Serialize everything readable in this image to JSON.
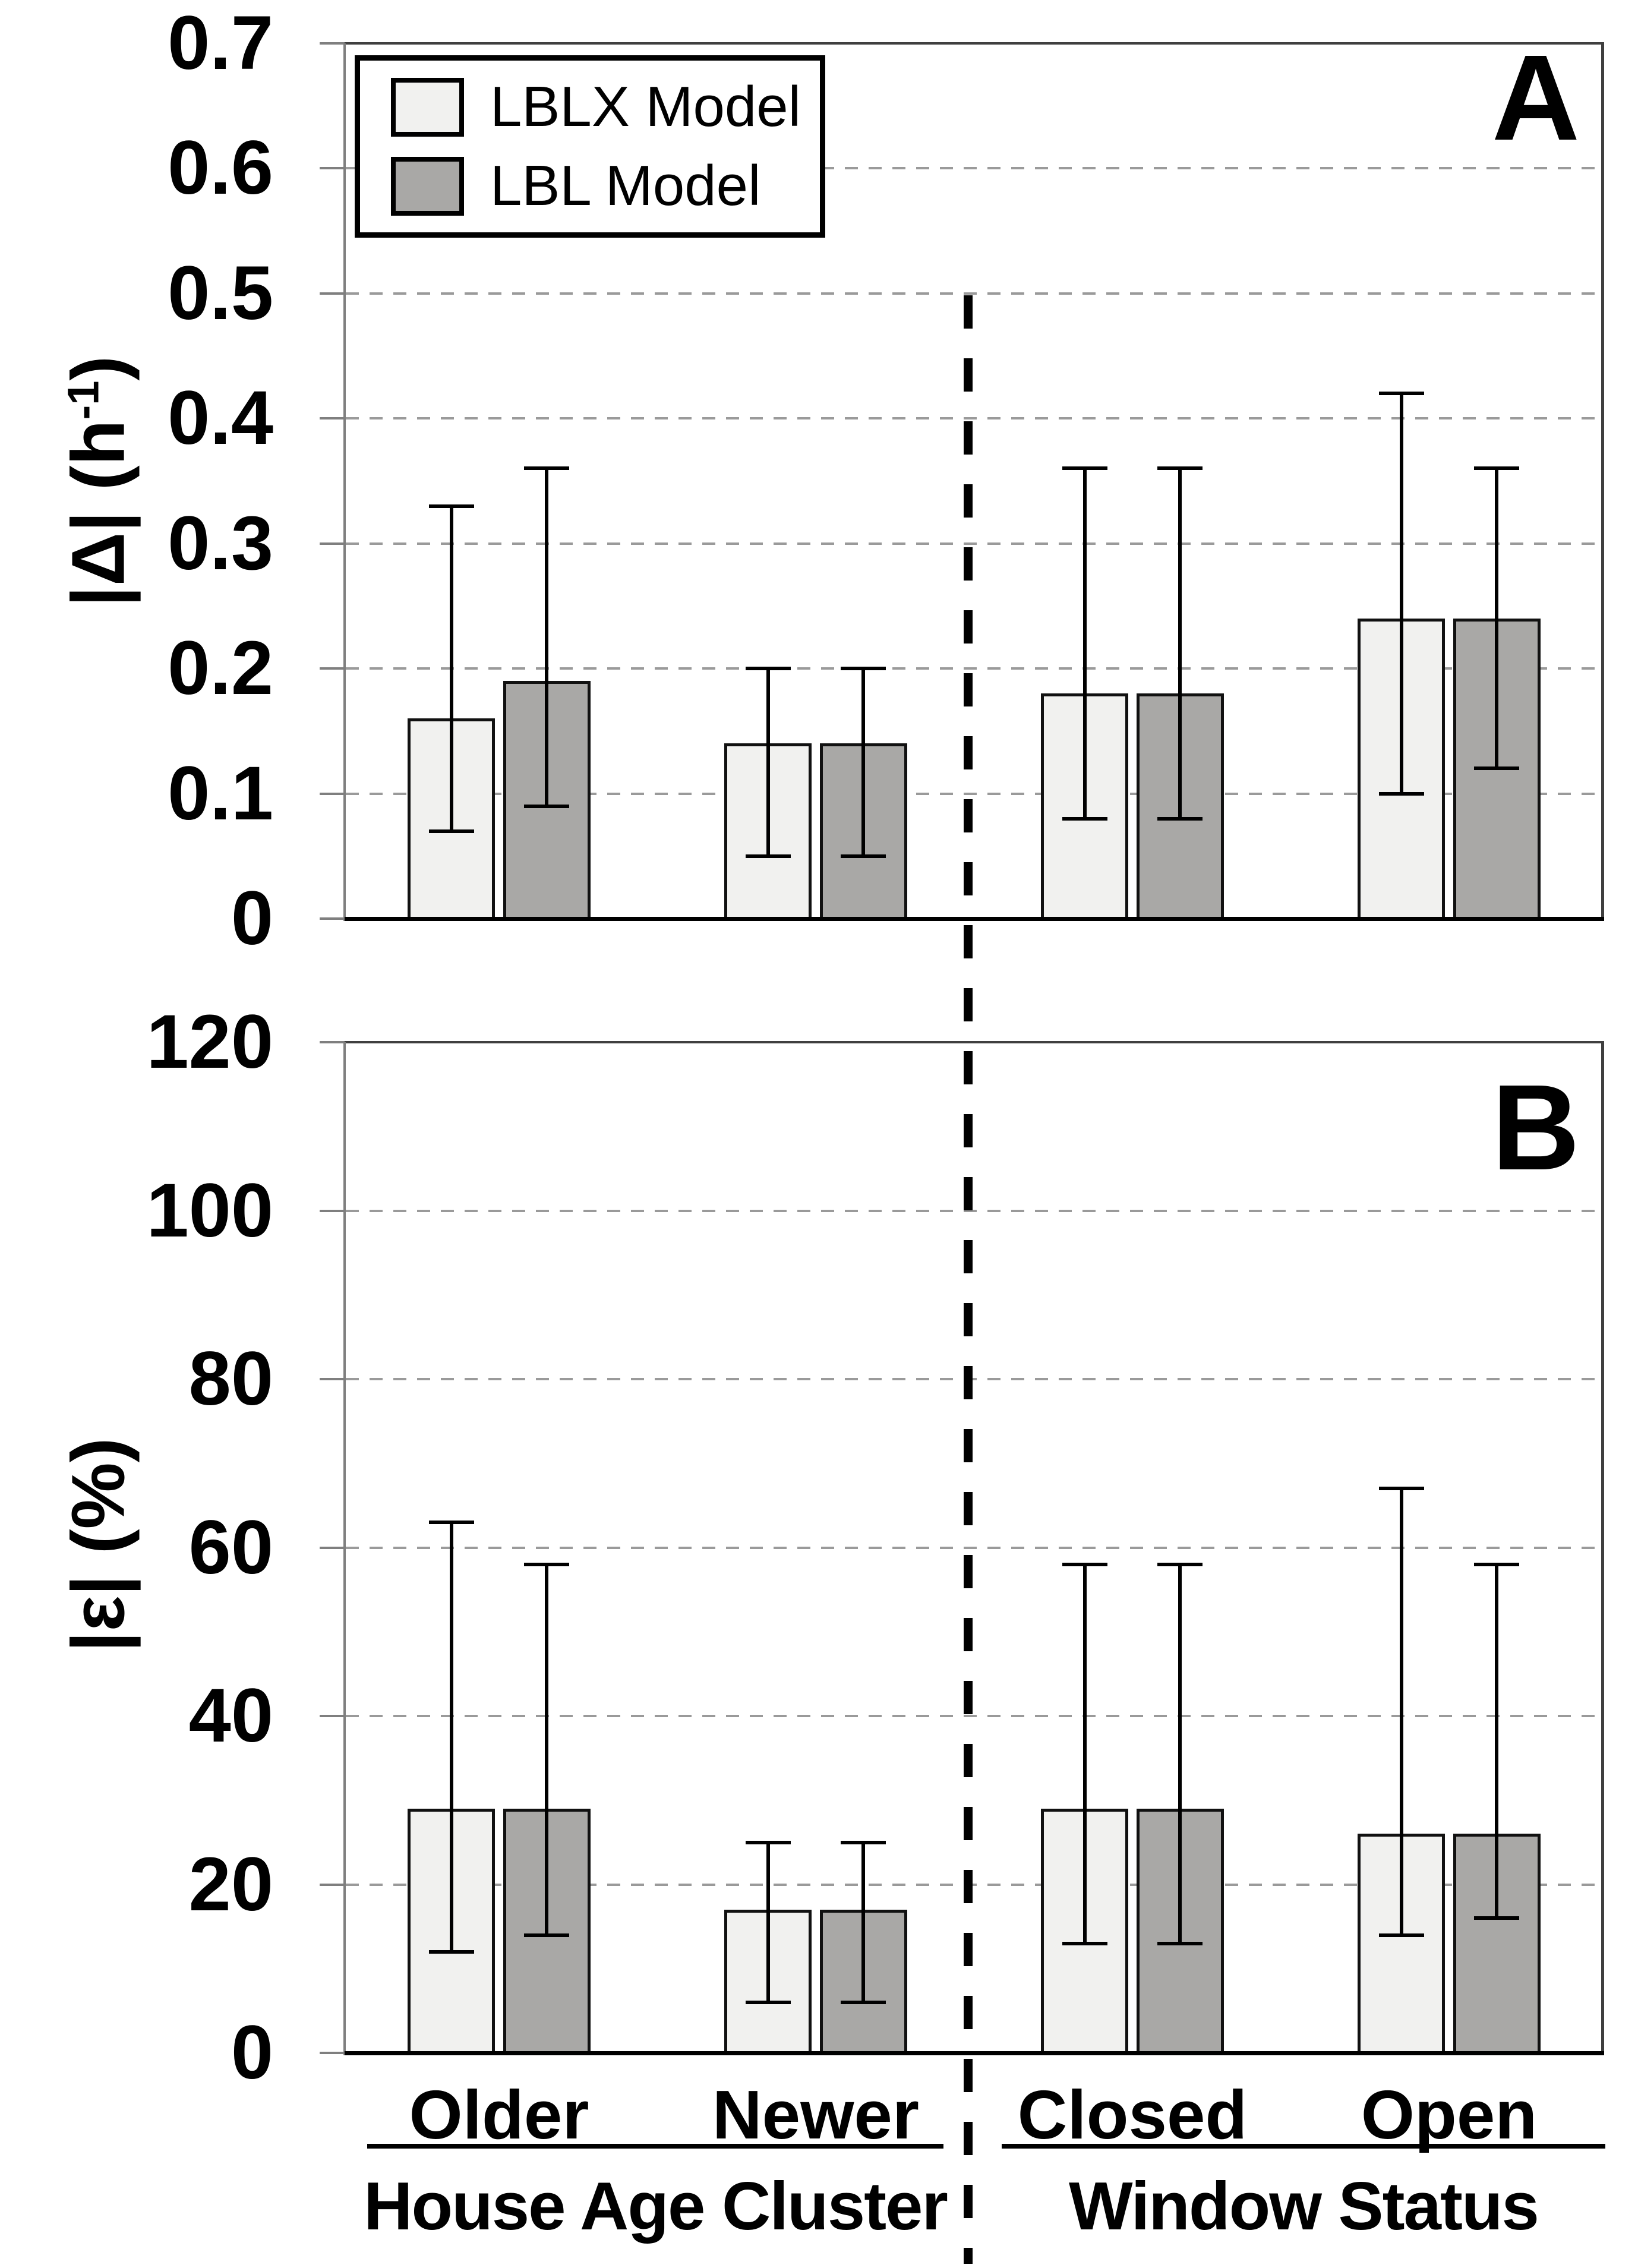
{
  "figure_title": "",
  "legend": {
    "items": [
      {
        "label": "LBLX Model",
        "color": "#f1f1ef"
      },
      {
        "label": "LBL Model",
        "color": "#a9a8a6"
      }
    ]
  },
  "x_axis": {
    "groups": [
      {
        "label": "House Age Cluster",
        "categories": [
          "Older",
          "Newer"
        ]
      },
      {
        "label": "Window Status",
        "categories": [
          "Closed",
          "Open"
        ]
      }
    ],
    "separator": "vertical dashed line between House Age Cluster and Window Status"
  },
  "chart_data": [
    {
      "type": "bar",
      "panel_label": "A",
      "ylabel": "|Δ| (h⁻¹)",
      "ylabel_parts": {
        "pre": "|Δ| (h",
        "sup": "-1",
        "post": ")"
      },
      "ylim": [
        0,
        0.7
      ],
      "yticks": [
        0,
        0.1,
        0.2,
        0.3,
        0.4,
        0.5,
        0.6,
        0.7
      ],
      "ytick_labels": [
        "0",
        "0.1",
        "0.2",
        "0.3",
        "0.4",
        "0.5",
        "0.6",
        "0.7"
      ],
      "grid": "horizontal dashed gridlines at each tick",
      "legend_position": "top-left inside plot",
      "categories": [
        "Older",
        "Newer",
        "Closed",
        "Open"
      ],
      "series": [
        {
          "name": "LBLX Model",
          "values": [
            0.16,
            0.14,
            0.18,
            0.24
          ],
          "err_cap_low": [
            0.07,
            0.05,
            0.08,
            0.1
          ],
          "err_cap_high": [
            0.33,
            0.2,
            0.36,
            0.42
          ]
        },
        {
          "name": "LBL Model",
          "values": [
            0.19,
            0.14,
            0.18,
            0.24
          ],
          "err_cap_low": [
            0.09,
            0.05,
            0.08,
            0.12
          ],
          "err_cap_high": [
            0.36,
            0.2,
            0.36,
            0.36
          ]
        }
      ]
    },
    {
      "type": "bar",
      "panel_label": "B",
      "ylabel": "|ε| (%)",
      "ylabel_parts": {
        "pre": "|ε| (%)",
        "sup": "",
        "post": ""
      },
      "ylim": [
        0,
        120
      ],
      "yticks": [
        0,
        20,
        40,
        60,
        80,
        100,
        120
      ],
      "ytick_labels": [
        "0",
        "20",
        "40",
        "60",
        "80",
        "100",
        "120"
      ],
      "grid": "horizontal dashed gridlines at each tick",
      "categories": [
        "Older",
        "Newer",
        "Closed",
        "Open"
      ],
      "series": [
        {
          "name": "LBLX Model",
          "values": [
            29,
            17,
            29,
            26
          ],
          "err_cap_low": [
            12,
            6,
            13,
            14
          ],
          "err_cap_high": [
            63,
            25,
            58,
            67
          ]
        },
        {
          "name": "LBL Model",
          "values": [
            29,
            17,
            29,
            26
          ],
          "err_cap_low": [
            14,
            6,
            13,
            16
          ],
          "err_cap_high": [
            58,
            25,
            58,
            58
          ]
        }
      ]
    }
  ],
  "colors": {
    "bar_border": "#111111",
    "error_bar": "#000000",
    "gridline": "#9a9a9a",
    "axis_line": "#7f7f7f",
    "baseline": "#000000",
    "frame": "#3f3f3f",
    "background": "#ffffff",
    "text": "#000000"
  }
}
